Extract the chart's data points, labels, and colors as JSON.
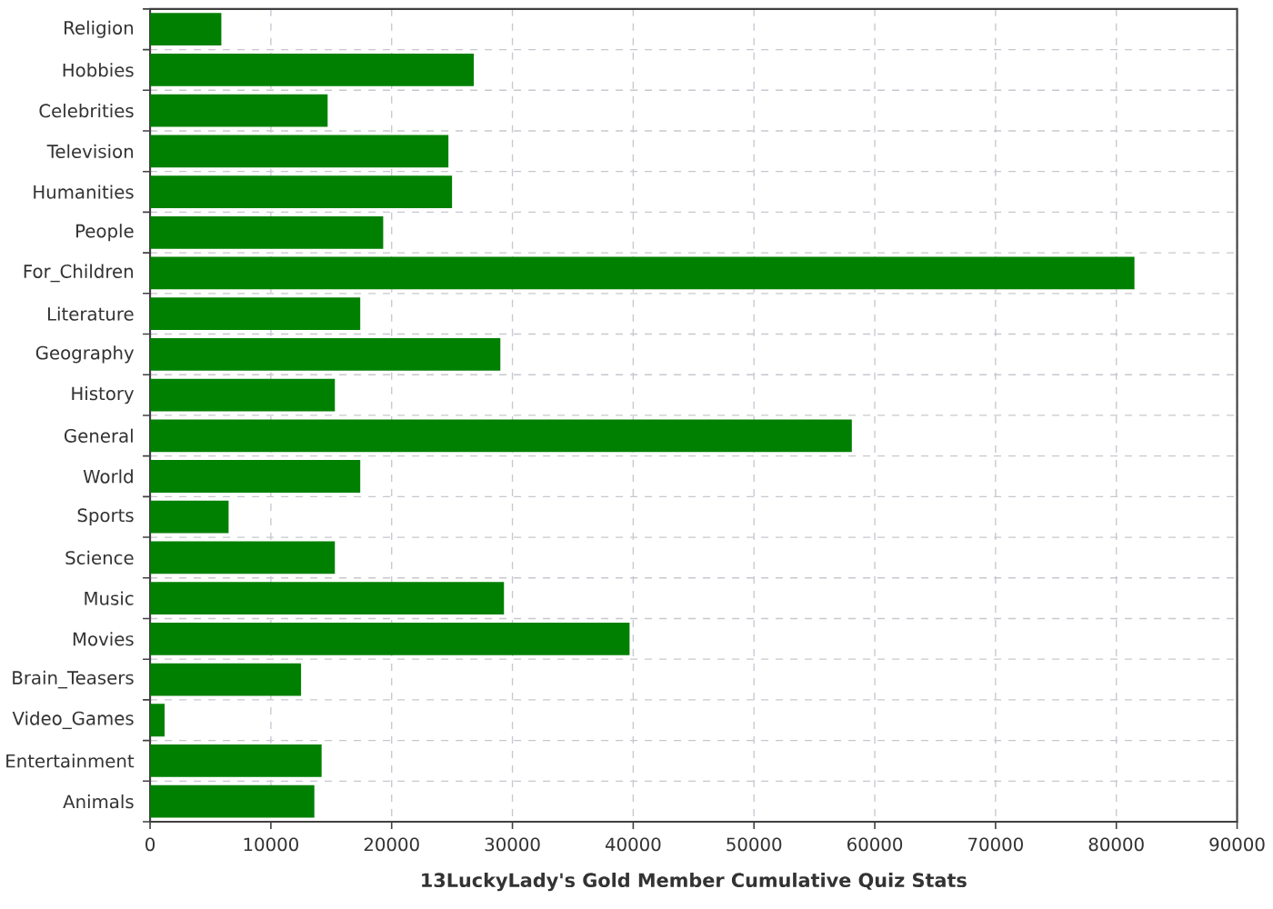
{
  "chart_data": {
    "type": "bar",
    "orientation": "horizontal",
    "xlabel": "13LuckyLady's Gold Member Cumulative Quiz Stats",
    "categories": [
      "Religion",
      "Hobbies",
      "Celebrities",
      "Television",
      "Humanities",
      "People",
      "For_Children",
      "Literature",
      "Geography",
      "History",
      "General",
      "World",
      "Sports",
      "Science",
      "Music",
      "Movies",
      "Brain_Teasers",
      "Video_Games",
      "Entertainment",
      "Animals"
    ],
    "values": [
      5900,
      26800,
      14700,
      24700,
      25000,
      19300,
      81500,
      17400,
      29000,
      15300,
      58100,
      17400,
      6500,
      15300,
      29300,
      39700,
      12500,
      1200,
      14200,
      13600
    ],
    "color": "#008000",
    "xlim": [
      0,
      90000
    ],
    "xticks": [
      0,
      10000,
      20000,
      30000,
      40000,
      50000,
      60000,
      70000,
      80000,
      90000
    ],
    "grid": true
  }
}
